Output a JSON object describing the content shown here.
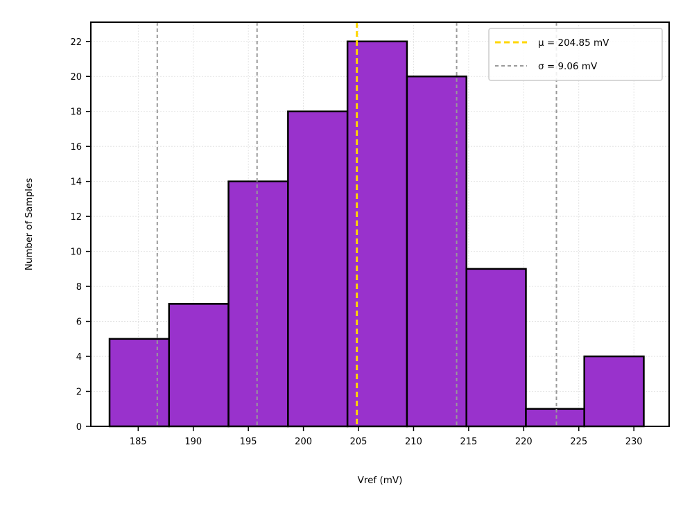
{
  "chart_data": {
    "type": "bar",
    "subtype": "histogram",
    "title": "",
    "xlabel": "Vref (mV)",
    "ylabel": "Number of Samples",
    "xlim": [
      180.7,
      233.2
    ],
    "ylim": [
      0,
      23.1
    ],
    "xticks": [
      185,
      190,
      195,
      200,
      205,
      210,
      215,
      220,
      225,
      230
    ],
    "yticks": [
      0,
      2,
      4,
      6,
      8,
      10,
      12,
      14,
      16,
      18,
      20,
      22
    ],
    "grid": true,
    "bins": [
      {
        "x0": 182.4,
        "x1": 187.8,
        "count": 5
      },
      {
        "x0": 187.8,
        "x1": 193.2,
        "count": 7
      },
      {
        "x0": 193.2,
        "x1": 198.6,
        "count": 14
      },
      {
        "x0": 198.6,
        "x1": 204.0,
        "count": 18
      },
      {
        "x0": 204.0,
        "x1": 209.4,
        "count": 22
      },
      {
        "x0": 209.4,
        "x1": 214.8,
        "count": 20
      },
      {
        "x0": 214.8,
        "x1": 220.2,
        "count": 9
      },
      {
        "x0": 220.2,
        "x1": 225.5,
        "count": 1
      },
      {
        "x0": 225.5,
        "x1": 230.9,
        "count": 4
      }
    ],
    "mean": 204.85,
    "std": 9.06,
    "sigma_lines": [
      186.73,
      195.79,
      213.91,
      222.97
    ],
    "legend_position": "top-right",
    "legend": [
      {
        "label": "μ = 204.85 mV",
        "color": "#ffd700",
        "style": "dashed"
      },
      {
        "label": "σ = 9.06 mV",
        "color": "#999999",
        "style": "dashed"
      }
    ],
    "colors": {
      "bar_fill": "#9932cc",
      "bar_edge": "#000000",
      "mean_line": "#ffd700",
      "sigma_line": "#999999"
    }
  }
}
